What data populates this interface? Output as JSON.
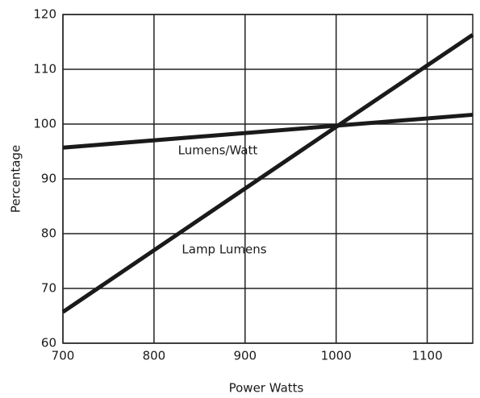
{
  "chart_data": {
    "type": "line",
    "x_label": "Power  Watts",
    "y_label": "Percentage",
    "x": [
      700,
      1000,
      1150
    ],
    "series": [
      {
        "name": "Lumens/Watt",
        "color": "#1a1a1a",
        "values": [
          95.7,
          99.7,
          101.7
        ]
      },
      {
        "name": "Lamp Lumens",
        "color": "#1a1a1a",
        "values": [
          65.7,
          99.5,
          116.3
        ]
      }
    ],
    "xlim": [
      700,
      1150
    ],
    "xticks": [
      700,
      800,
      900,
      1000,
      1100
    ],
    "ylim": [
      60,
      120
    ],
    "yticks": [
      60,
      70,
      80,
      90,
      100,
      110,
      120
    ],
    "grid": true
  }
}
